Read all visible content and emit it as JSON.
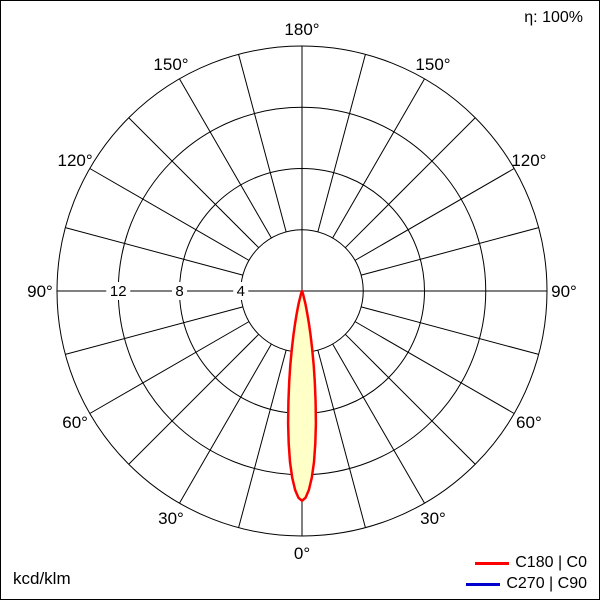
{
  "header": {
    "efficiency": "η: 100%"
  },
  "footer": {
    "unit": "kcd/klm"
  },
  "legend": {
    "items": [
      {
        "label": "C180 | C0",
        "color": "#ff0000"
      },
      {
        "label": "C270 | C90",
        "color": "#0000cc"
      }
    ]
  },
  "chart_data": {
    "type": "polar",
    "description": "Polar luminous intensity distribution curve (narrow downward beam luminaire)",
    "unit": "kcd/klm",
    "efficiency_percent": 100,
    "scale_max": 16,
    "ring_values": [
      4,
      8,
      12,
      16
    ],
    "ring_tick_labels": [
      {
        "value": 12,
        "label": "12"
      },
      {
        "value": 8,
        "label": "8"
      },
      {
        "value": 4,
        "label": "4"
      }
    ],
    "spoke_step_deg": 15,
    "angle_labels": [
      {
        "gamma": 0,
        "label": "0°",
        "mirror": false
      },
      {
        "gamma": 30,
        "label": "30°",
        "mirror": true
      },
      {
        "gamma": 60,
        "label": "60°",
        "mirror": true
      },
      {
        "gamma": 90,
        "label": "90°",
        "mirror": true
      },
      {
        "gamma": 120,
        "label": "120°",
        "mirror": true
      },
      {
        "gamma": 150,
        "label": "150°",
        "mirror": true
      },
      {
        "gamma": 180,
        "label": "180°",
        "mirror": false
      }
    ],
    "series": [
      {
        "name": "C180 | C0",
        "color": "#ff0000",
        "fill": "#ffffc8",
        "visible": true,
        "symmetric": true,
        "gamma_deg": [
          0,
          1,
          2,
          3,
          4,
          5,
          6,
          7,
          8,
          9,
          10,
          11,
          12,
          13,
          14,
          15,
          16,
          17,
          18,
          19,
          20,
          22,
          24,
          26,
          30,
          45,
          60,
          75,
          90
        ],
        "intensity_kcd_per_klm": [
          13.7,
          13.5,
          13.0,
          12.2,
          11.2,
          10.0,
          8.7,
          7.3,
          6.0,
          4.9,
          3.8,
          2.9,
          2.2,
          1.6,
          1.1,
          0.8,
          0.5,
          0.36,
          0.23,
          0.15,
          0.09,
          0.03,
          0.01,
          0,
          0,
          0,
          0,
          0,
          0
        ]
      },
      {
        "name": "C270 | C90",
        "color": "#0000cc",
        "visible": false
      }
    ]
  }
}
